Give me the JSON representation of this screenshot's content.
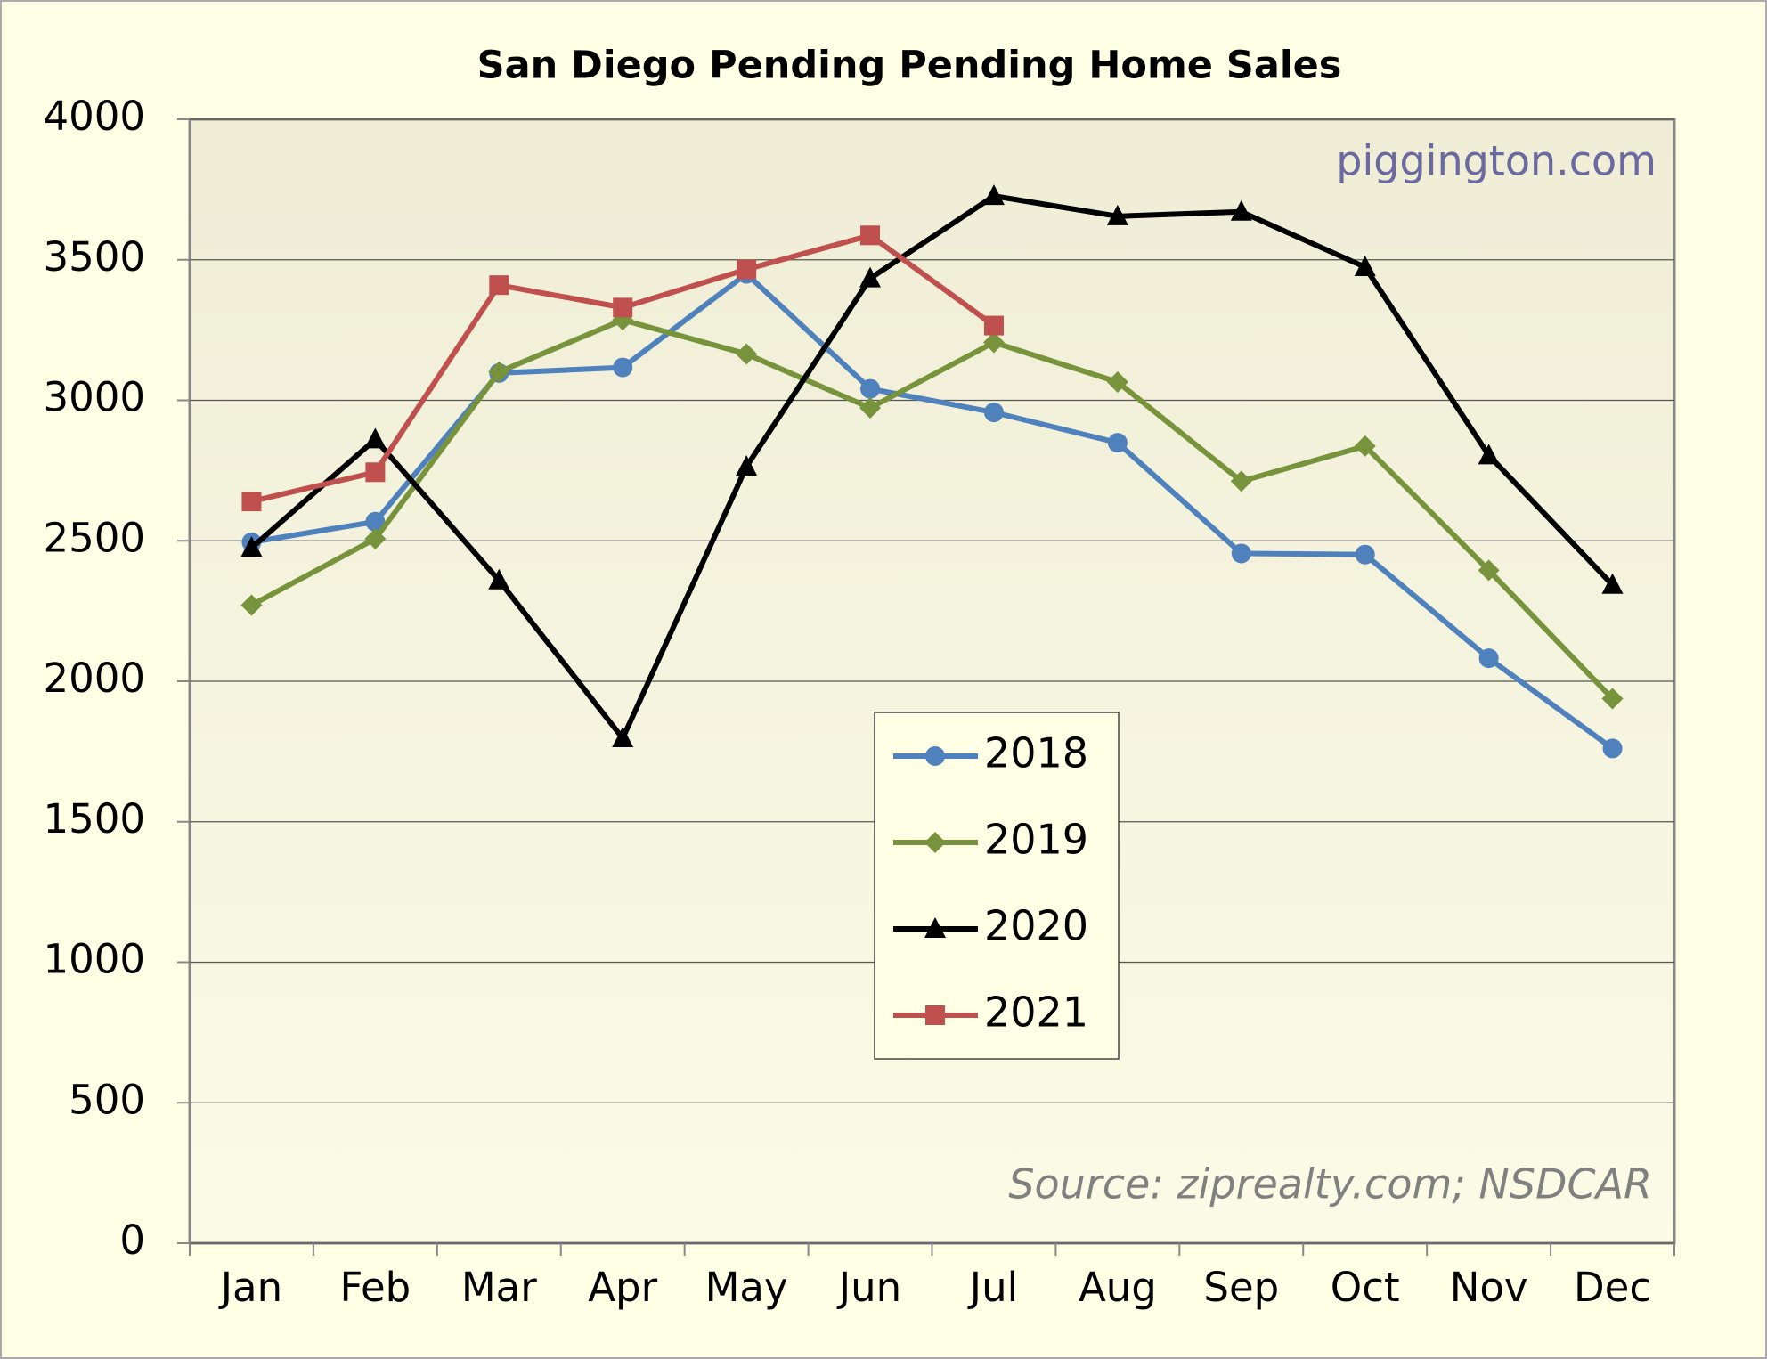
{
  "chart_data": {
    "type": "line",
    "title": "San Diego Pending Pending Home Sales",
    "annotations": [
      "piggington.com",
      "Source: ziprealty.com; NSDCAR"
    ],
    "categories": [
      "Jan",
      "Feb",
      "Mar",
      "Apr",
      "May",
      "Jun",
      "Jul",
      "Aug",
      "Sep",
      "Oct",
      "Nov",
      "Dec"
    ],
    "series": [
      {
        "name": "2018",
        "color": "#4f81bd",
        "marker": "circle",
        "values": [
          2495,
          2568,
          3097,
          3117,
          3450,
          3041,
          2957,
          2849,
          2455,
          2451,
          2082,
          1761
        ]
      },
      {
        "name": "2019",
        "color": "#77933c",
        "marker": "diamond",
        "values": [
          2271,
          2507,
          3101,
          3286,
          3165,
          2973,
          3206,
          3065,
          2712,
          2837,
          2395,
          1938
        ]
      },
      {
        "name": "2020",
        "color": "#000000",
        "marker": "triangle",
        "values": [
          2475,
          2861,
          2359,
          1797,
          2764,
          3434,
          3727,
          3655,
          3671,
          3474,
          2804,
          2343
        ]
      },
      {
        "name": "2021",
        "color": "#c0504d",
        "marker": "square",
        "values": [
          2640,
          2744,
          3410,
          3330,
          3466,
          3587,
          3266,
          null,
          null,
          null,
          null,
          null
        ]
      }
    ],
    "ylim": [
      0,
      4000
    ],
    "yticks": [
      0,
      500,
      1000,
      1500,
      2000,
      2500,
      3000,
      3500,
      4000
    ],
    "grid": true
  }
}
